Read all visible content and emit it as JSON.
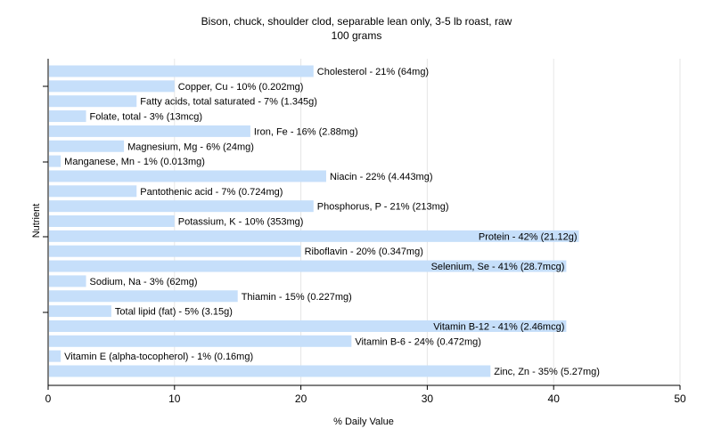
{
  "chart_data": {
    "type": "bar",
    "orientation": "horizontal",
    "title": "Bison, chuck, shoulder clod, separable lean only, 3-5 lb roast, raw",
    "subtitle": "100 grams",
    "xlabel": "% Daily Value",
    "ylabel": "Nutrient",
    "xlim": [
      0,
      50
    ],
    "xticks": [
      0,
      10,
      20,
      30,
      40,
      50
    ],
    "grid": true,
    "bar_color": "#c6dffa",
    "grid_color": "#e6e6e6",
    "categories": [
      "Cholesterol",
      "Copper, Cu",
      "Fatty acids, total saturated",
      "Folate, total",
      "Iron, Fe",
      "Magnesium, Mg",
      "Manganese, Mn",
      "Niacin",
      "Pantothenic acid",
      "Phosphorus, P",
      "Potassium, K",
      "Protein",
      "Riboflavin",
      "Selenium, Se",
      "Sodium, Na",
      "Thiamin",
      "Total lipid (fat)",
      "Vitamin B-12",
      "Vitamin B-6",
      "Vitamin E (alpha-tocopherol)",
      "Zinc, Zn"
    ],
    "values": [
      21,
      10,
      7,
      3,
      16,
      6,
      1,
      22,
      7,
      21,
      10,
      42,
      20,
      41,
      3,
      15,
      5,
      41,
      24,
      1,
      35
    ],
    "labels": [
      "Cholesterol - 21% (64mg)",
      "Copper, Cu - 10% (0.202mg)",
      "Fatty acids, total saturated - 7% (1.345g)",
      "Folate, total - 3% (13mcg)",
      "Iron, Fe - 16% (2.88mg)",
      "Magnesium, Mg - 6% (24mg)",
      "Manganese, Mn - 1% (0.013mg)",
      "Niacin - 22% (4.443mg)",
      "Pantothenic acid - 7% (0.724mg)",
      "Phosphorus, P - 21% (213mg)",
      "Potassium, K - 10% (353mg)",
      "Protein - 42% (21.12g)",
      "Riboflavin - 20% (0.347mg)",
      "Selenium, Se - 41% (28.7mcg)",
      "Sodium, Na - 3% (62mg)",
      "Thiamin - 15% (0.227mg)",
      "Total lipid (fat) - 5% (3.15g)",
      "Vitamin B-12 - 41% (2.46mcg)",
      "Vitamin B-6 - 24% (0.472mg)",
      "Vitamin E (alpha-tocopherol) - 1% (0.16mg)",
      "Zinc, Zn - 35% (5.27mg)"
    ]
  }
}
